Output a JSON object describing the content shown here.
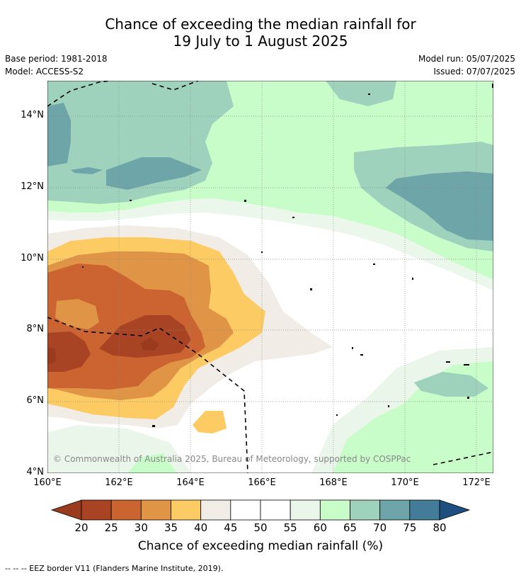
{
  "title_line1": "Chance of exceeding the median rainfall for",
  "title_line2": "19 July to 1 August 2025",
  "meta": {
    "base_period": "Base period: 1981-2018",
    "model": "Model: ACCESS-S2",
    "model_run": "Model run: 05/07/2025",
    "issued": "Issued: 07/07/2025"
  },
  "map": {
    "lat_labels": [
      "14°N",
      "12°N",
      "10°N",
      "8°N",
      "6°N",
      "4°N"
    ],
    "lon_labels": [
      "160°E",
      "162°E",
      "164°E",
      "166°E",
      "168°E",
      "170°E",
      "172°E"
    ],
    "copyright": "© Commonwealth of Australia 2025, Bureau of Meteorology, supported by COSPPac"
  },
  "colorbar": {
    "ticks": [
      "20",
      "25",
      "30",
      "35",
      "40",
      "45",
      "50",
      "55",
      "60",
      "65",
      "70",
      "75",
      "80"
    ],
    "colors": [
      "#a84424",
      "#cc6432",
      "#e09446",
      "#fdcb64",
      "#f1ede6",
      "#ffffff",
      "#ffffff",
      "#eaf6ea",
      "#c8fcc8",
      "#9ed2bc",
      "#6ea5a8",
      "#427c98"
    ],
    "low_color": "#9b3b1e",
    "high_color": "#1e4f80",
    "title": "Chance of exceeding median rainfall (%)"
  },
  "footer": "--  --  -- EEZ border V11 (Flanders Marine Institute, 2019)."
}
